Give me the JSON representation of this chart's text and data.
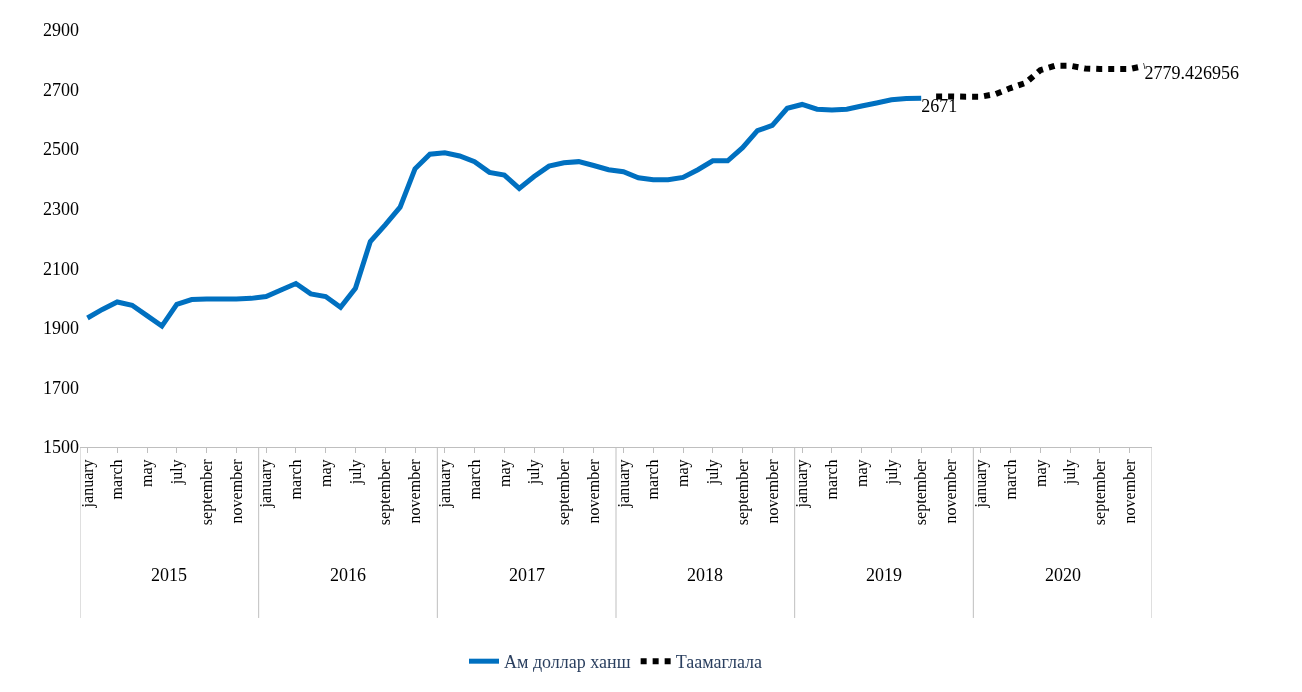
{
  "chart_data": {
    "type": "line",
    "categories": [
      "january",
      null,
      "march",
      null,
      "may",
      null,
      "july",
      null,
      "september",
      null,
      "november",
      null,
      "january",
      null,
      "march",
      null,
      "may",
      null,
      "july",
      null,
      "september",
      null,
      "november",
      null,
      "january",
      null,
      "march",
      null,
      "may",
      null,
      "july",
      null,
      "september",
      null,
      "november",
      null,
      "january",
      null,
      "march",
      null,
      "may",
      null,
      "july",
      null,
      "september",
      null,
      "november",
      null,
      "january",
      null,
      "march",
      null,
      "may",
      null,
      "july",
      null,
      "september",
      null,
      "november",
      null,
      "january",
      null,
      "march",
      null,
      "may",
      null,
      "july",
      null,
      "september",
      null,
      "november",
      null
    ],
    "series": [
      {
        "name": "Ам доллар ханш",
        "color": "#0070c0",
        "line_style": "solid",
        "values": [
          1933,
          1962,
          1987,
          1976,
          1941,
          1906,
          1979,
          1995,
          1997,
          1997,
          1997,
          1999,
          2005,
          2027,
          2049,
          2014,
          2005,
          1969,
          2033,
          2190,
          2246,
          2305,
          2434,
          2483,
          2488,
          2477,
          2458,
          2422,
          2413,
          2368,
          2408,
          2443,
          2454,
          2458,
          2445,
          2431,
          2424,
          2404,
          2397,
          2397,
          2405,
          2431,
          2461,
          2461,
          2505,
          2562,
          2580,
          2637,
          2650,
          2634,
          2631,
          2634,
          2645,
          2655,
          2666,
          2670,
          2671,
          null,
          null,
          null,
          null,
          null,
          null,
          null,
          null,
          null,
          null,
          null,
          null,
          null,
          null,
          null
        ],
        "value_labels": [
          null,
          null,
          null,
          null,
          null,
          null,
          null,
          null,
          null,
          null,
          null,
          null,
          null,
          null,
          null,
          null,
          null,
          null,
          null,
          null,
          null,
          null,
          null,
          null,
          null,
          null,
          null,
          null,
          null,
          null,
          null,
          null,
          null,
          null,
          null,
          null,
          null,
          null,
          null,
          null,
          null,
          null,
          null,
          null,
          null,
          null,
          null,
          null,
          null,
          null,
          null,
          null,
          null,
          null,
          null,
          null,
          "2671",
          null,
          null,
          null,
          null,
          null,
          null,
          null,
          null,
          null,
          null,
          null,
          null,
          null,
          null,
          null
        ]
      },
      {
        "name": "Таамаглала",
        "color": "#000000",
        "line_style": "dotted",
        "values": [
          null,
          null,
          null,
          null,
          null,
          null,
          null,
          null,
          null,
          null,
          null,
          null,
          null,
          null,
          null,
          null,
          null,
          null,
          null,
          null,
          null,
          null,
          null,
          null,
          null,
          null,
          null,
          null,
          null,
          null,
          null,
          null,
          null,
          null,
          null,
          null,
          null,
          null,
          null,
          null,
          null,
          null,
          null,
          null,
          null,
          null,
          null,
          null,
          null,
          null,
          null,
          null,
          null,
          null,
          null,
          null,
          null,
          2677,
          2677,
          2676,
          2676,
          2685,
          2705,
          2722,
          2765,
          2780,
          2780,
          2771,
          2769,
          2769,
          2769,
          2779.426956
        ],
        "value_labels": [
          null,
          null,
          null,
          null,
          null,
          null,
          null,
          null,
          null,
          null,
          null,
          null,
          null,
          null,
          null,
          null,
          null,
          null,
          null,
          null,
          null,
          null,
          null,
          null,
          null,
          null,
          null,
          null,
          null,
          null,
          null,
          null,
          null,
          null,
          null,
          null,
          null,
          null,
          null,
          null,
          null,
          null,
          null,
          null,
          null,
          null,
          null,
          null,
          null,
          null,
          null,
          null,
          null,
          null,
          null,
          null,
          null,
          null,
          null,
          null,
          null,
          null,
          null,
          null,
          null,
          null,
          null,
          null,
          null,
          null,
          null,
          "2779.426956"
        ]
      }
    ],
    "annotations": [
      "2015",
      "2016",
      "2017",
      "2018",
      "2019",
      "2020"
    ],
    "ylim": [
      1500,
      2900
    ],
    "yticks": [
      1500,
      1700,
      1900,
      2100,
      2300,
      2500,
      2700,
      2900
    ],
    "grid": false,
    "legend": "bottom",
    "marker": "none"
  }
}
